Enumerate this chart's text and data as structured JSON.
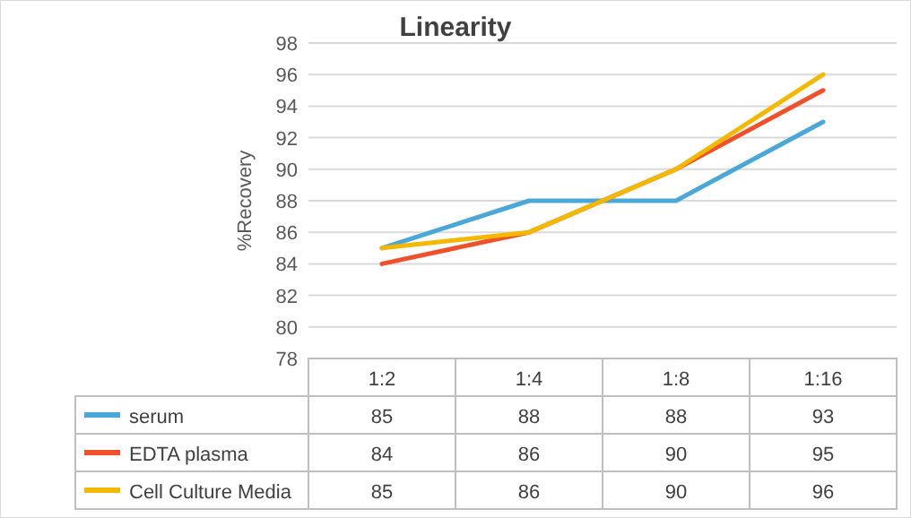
{
  "chart_data": {
    "type": "line",
    "title": "Linearity",
    "ylabel": "%Recovery",
    "categories": [
      "1:2",
      "1:4",
      "1:8",
      "1:16"
    ],
    "series": [
      {
        "name": "serum",
        "color": "#4aa8d8",
        "values": [
          85,
          88,
          88,
          93
        ]
      },
      {
        "name": "EDTA plasma",
        "color": "#f0502a",
        "values": [
          84,
          86,
          90,
          95
        ]
      },
      {
        "name": "Cell Culture Media",
        "color": "#f5b800",
        "values": [
          85,
          86,
          90,
          96
        ]
      }
    ],
    "ylim": [
      78,
      98
    ],
    "yticks": [
      78,
      80,
      82,
      84,
      86,
      88,
      90,
      92,
      94,
      96,
      98
    ],
    "grid": "y",
    "legend": "bottom",
    "data_labels": true,
    "marker": "none",
    "line_style": "solid"
  }
}
